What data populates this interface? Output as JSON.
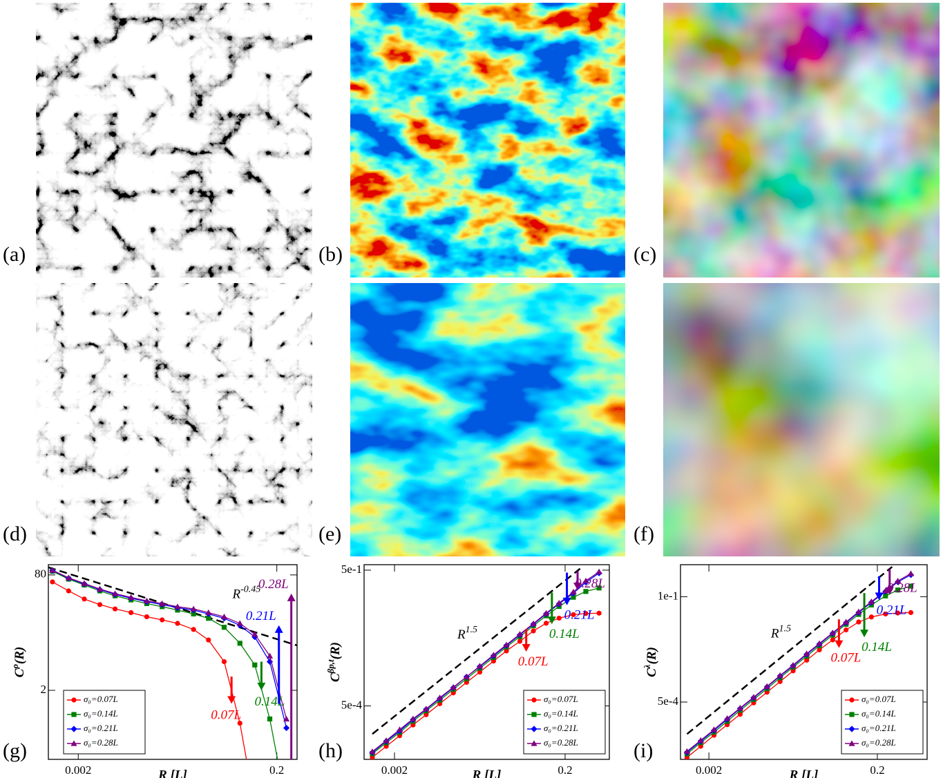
{
  "panels": {
    "labels": [
      "(a)",
      "(b)",
      "(c)",
      "(d)",
      "(e)",
      "(f)",
      "(g)",
      "(h)",
      "(i)"
    ]
  },
  "chart_data": [
    {
      "type": "line",
      "x_label": "R [L]",
      "y_label": {
        "base": "C",
        "sup": "ρ",
        "arg": "(R)"
      },
      "xlog": true,
      "ylog": true,
      "xlim": [
        0.001,
        0.32
      ],
      "ylim": [
        0.22,
        111
      ],
      "xticks": [
        0.002,
        0.2
      ],
      "yticks": [
        2,
        80
      ],
      "legend": "lower left",
      "x": [
        0.0011,
        0.0016,
        0.0023,
        0.0033,
        0.0047,
        0.0068,
        0.0098,
        0.014,
        0.02,
        0.029,
        0.041,
        0.059,
        0.085,
        0.12,
        0.17,
        0.25
      ],
      "series": [
        {
          "name": "σ₀=0.07L",
          "color": "#ff0000",
          "marker": "circle",
          "values": [
            64,
            48,
            37,
            31,
            27,
            24,
            21,
            19,
            17,
            14,
            10,
            5,
            0.7,
            0.05,
            null,
            null
          ]
        },
        {
          "name": "σ₀=0.14L",
          "color": "#008000",
          "marker": "square",
          "values": [
            90,
            70,
            58,
            48,
            41,
            36,
            32,
            29,
            26,
            23,
            20,
            15,
            9,
            4.5,
            0.8,
            0.05
          ]
        },
        {
          "name": "σ₀=0.21L",
          "color": "#0000ff",
          "marker": "diamond",
          "values": [
            92,
            72,
            60,
            50,
            43,
            38,
            34,
            31,
            28,
            26,
            23,
            20,
            16,
            11,
            5,
            0.6
          ]
        },
        {
          "name": "σ₀=0.28L",
          "color": "#800080",
          "marker": "triangle",
          "values": [
            93,
            73,
            61,
            51,
            44,
            39,
            35,
            32,
            29,
            27,
            24,
            21,
            17,
            12,
            6,
            0.8
          ]
        }
      ],
      "reference": {
        "label_base": "R",
        "label_sup": "-0.45",
        "x": [
          0.001,
          0.32
        ],
        "values": [
          102,
          8.4
        ]
      },
      "annotations": [
        {
          "text": "0.07L",
          "color": "#ff0000",
          "x": 0.07,
          "from": 3.1,
          "to": 1.3
        },
        {
          "text": "0.14L",
          "color": "#008000",
          "x": 0.14,
          "from": 5.0,
          "to": 2.0
        },
        {
          "text": "0.21L",
          "color": "#0000ff",
          "x": 0.21,
          "from": 1.3,
          "to": 16
        },
        {
          "text": "0.28L",
          "color": "#800080",
          "x": 0.28,
          "from": 0.22,
          "to": 44
        }
      ]
    },
    {
      "type": "line",
      "x_label": "R [L]",
      "y_label": {
        "base": "C",
        "sup": "βp,t",
        "arg": "(R)"
      },
      "xlog": true,
      "ylog": true,
      "xlim": [
        0.00088,
        0.66
      ],
      "ylim": [
        3.3e-05,
        0.66
      ],
      "xticks": [
        0.002,
        0.2
      ],
      "yticks": [
        {
          "value": 0.5,
          "label": "5e-1"
        },
        {
          "value": 0.0005,
          "label": "5e-4"
        }
      ],
      "legend": "lower right",
      "x": [
        0.0011,
        0.0016,
        0.0023,
        0.0033,
        0.0047,
        0.0068,
        0.0098,
        0.014,
        0.02,
        0.029,
        0.041,
        0.059,
        0.085,
        0.12,
        0.17,
        0.25,
        0.35,
        0.5
      ],
      "series": [
        {
          "name": "σ₀=0.07L",
          "color": "#ff0000",
          "marker": "circle",
          "values": [
            3.65e-05,
            6.4e-05,
            0.00011,
            0.00019,
            0.00032,
            0.00056,
            0.00097,
            0.00166,
            0.0028,
            0.0049,
            0.0082,
            0.0134,
            0.0227,
            0.0336,
            0.0435,
            0.052,
            0.055,
            0.056
          ]
        },
        {
          "name": "σ₀=0.14L",
          "color": "#008000",
          "marker": "square",
          "values": [
            4.4e-05,
            7.7e-05,
            0.00013,
            0.00023,
            0.00039,
            0.00067,
            0.00116,
            0.002,
            0.0034,
            0.0059,
            0.01,
            0.017,
            0.0295,
            0.049,
            0.079,
            0.126,
            0.169,
            0.202
          ]
        },
        {
          "name": "σ₀=0.21L",
          "color": "#0000ff",
          "marker": "diamond",
          "values": [
            4.7e-05,
            8.3e-05,
            0.00014,
            0.00025,
            0.00042,
            0.00073,
            0.00126,
            0.0022,
            0.0037,
            0.0064,
            0.0108,
            0.0186,
            0.032,
            0.054,
            0.09,
            0.155,
            0.27,
            0.43
          ]
        },
        {
          "name": "σ₀=0.28L",
          "color": "#800080",
          "marker": "triangle",
          "values": [
            4.9e-05,
            8.6e-05,
            0.00015,
            0.00026,
            0.00043,
            0.00076,
            0.0013,
            0.0022,
            0.0038,
            0.0067,
            0.0112,
            0.0193,
            0.033,
            0.056,
            0.094,
            0.165,
            0.29,
            0.46
          ]
        }
      ],
      "reference": {
        "label_base": "R",
        "label_sup": "1.5",
        "x": [
          0.0011,
          0.3
        ],
        "values": [
          0.00012,
          0.54
        ]
      },
      "annotations": [
        {
          "text": "0.07L",
          "color": "#ff0000",
          "x": 0.07,
          "from": 0.025,
          "to": 0.0079
        },
        {
          "text": "0.14L",
          "color": "#008000",
          "x": 0.14,
          "from": 0.16,
          "to": 0.032
        },
        {
          "text": "0.21L",
          "color": "#0000ff",
          "x": 0.21,
          "from": 0.44,
          "to": 0.084
        },
        {
          "text": "0.28L",
          "color": "#800080",
          "x": 0.28,
          "from": 0.47,
          "to": 0.18
        }
      ]
    },
    {
      "type": "line",
      "x_label": "R [L]",
      "y_label": {
        "base": "C",
        "sup": "λ",
        "arg": "(R)"
      },
      "xlog": true,
      "ylog": true,
      "xlim": [
        0.00092,
        0.78
      ],
      "ylim": [
        2.8e-05,
        0.5
      ],
      "xticks": [
        0.002,
        0.2
      ],
      "yticks": [
        {
          "value": 0.1,
          "label": "1e-1"
        },
        {
          "value": 0.0005,
          "label": "5e-4"
        }
      ],
      "legend": "lower right",
      "x": [
        0.0011,
        0.0016,
        0.0023,
        0.0033,
        0.0047,
        0.0068,
        0.0098,
        0.014,
        0.02,
        0.029,
        0.041,
        0.059,
        0.085,
        0.12,
        0.17,
        0.25,
        0.35,
        0.5
      ],
      "series": [
        {
          "name": "σ₀=0.07L",
          "color": "#ff0000",
          "marker": "circle",
          "values": [
            3.1e-05,
            5.4e-05,
            9.4e-05,
            0.00016,
            0.00027,
            0.00048,
            0.00082,
            0.0014,
            0.0024,
            0.0041,
            0.0069,
            0.0114,
            0.0188,
            0.028,
            0.036,
            0.042,
            0.044,
            0.045
          ]
        },
        {
          "name": "σ₀=0.14L",
          "color": "#008000",
          "marker": "square",
          "values": [
            3.7e-05,
            6.5e-05,
            0.00011,
            0.00019,
            0.00033,
            0.00057,
            0.00098,
            0.0017,
            0.0029,
            0.005,
            0.0085,
            0.0145,
            0.025,
            0.041,
            0.066,
            0.104,
            0.14,
            0.17
          ]
        },
        {
          "name": "σ₀=0.21L",
          "color": "#0000ff",
          "marker": "diamond",
          "values": [
            4e-05,
            7e-05,
            0.00012,
            0.00021,
            0.00036,
            0.00062,
            0.00107,
            0.00185,
            0.0031,
            0.0055,
            0.0092,
            0.0158,
            0.027,
            0.045,
            0.075,
            0.13,
            0.21,
            0.3
          ]
        },
        {
          "name": "σ₀=0.28L",
          "color": "#800080",
          "marker": "triangle",
          "values": [
            4.2e-05,
            7.3e-05,
            0.000125,
            0.00022,
            0.00037,
            0.00064,
            0.0011,
            0.0019,
            0.0032,
            0.0057,
            0.0095,
            0.0163,
            0.028,
            0.047,
            0.078,
            0.135,
            0.22,
            0.32
          ]
        }
      ],
      "reference": {
        "label_base": "R",
        "label_sup": "1.5",
        "x": [
          0.0011,
          0.3
        ],
        "values": [
          0.0001,
          0.45
        ]
      },
      "annotations": [
        {
          "text": "0.07L",
          "color": "#ff0000",
          "x": 0.07,
          "from": 0.032,
          "to": 0.0076
        },
        {
          "text": "0.14L",
          "color": "#008000",
          "x": 0.14,
          "from": 0.12,
          "to": 0.013
        },
        {
          "text": "0.21L",
          "color": "#0000ff",
          "x": 0.21,
          "from": 0.28,
          "to": 0.084
        },
        {
          "text": "0.28L",
          "color": "#800080",
          "x": 0.28,
          "from": 0.4,
          "to": 0.11
        }
      ]
    }
  ]
}
